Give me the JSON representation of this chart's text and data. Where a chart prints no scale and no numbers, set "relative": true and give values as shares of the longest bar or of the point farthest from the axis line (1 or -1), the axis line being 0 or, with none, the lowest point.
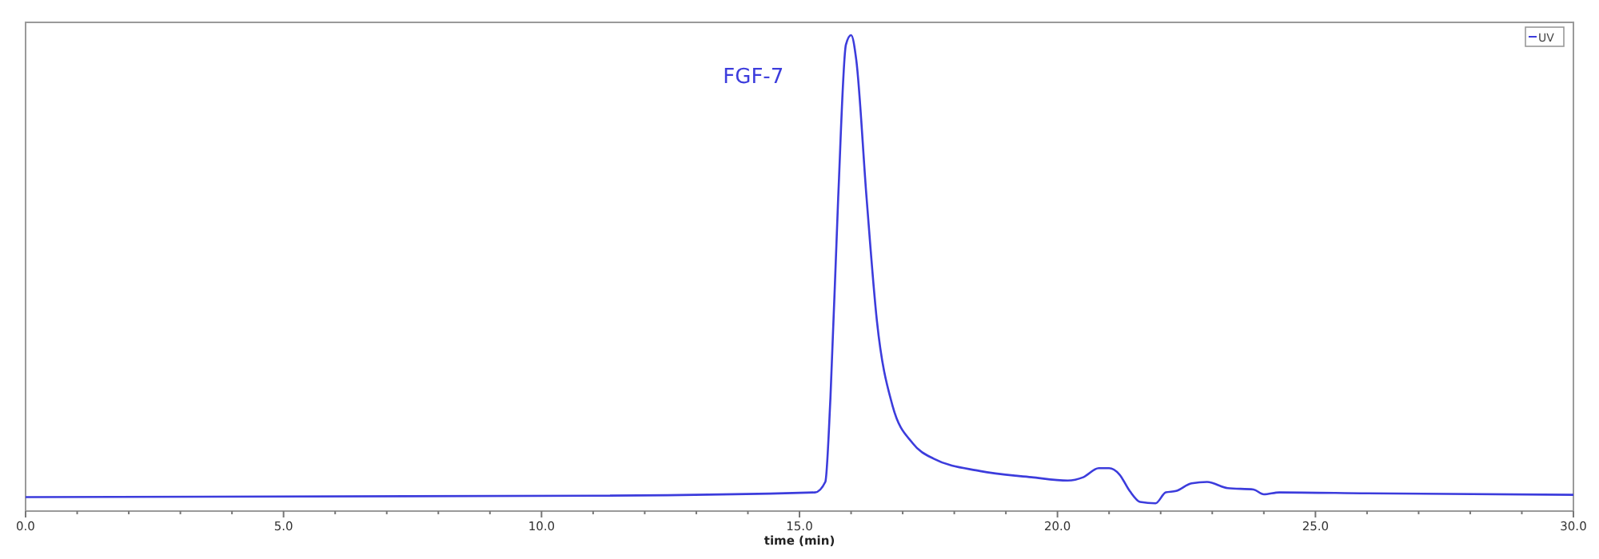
{
  "chart_data": {
    "type": "line",
    "relative": true,
    "xlabel": "time (min)",
    "xlim": [
      0,
      30
    ],
    "xticks": [
      {
        "value": 0,
        "label": "0.0"
      },
      {
        "value": 1,
        "label": null
      },
      {
        "value": 2,
        "label": null
      },
      {
        "value": 3,
        "label": null
      },
      {
        "value": 4,
        "label": null
      },
      {
        "value": 5,
        "label": "5.0"
      },
      {
        "value": 6,
        "label": null
      },
      {
        "value": 7,
        "label": null
      },
      {
        "value": 8,
        "label": null
      },
      {
        "value": 9,
        "label": null
      },
      {
        "value": 10,
        "label": "10.0"
      },
      {
        "value": 11,
        "label": null
      },
      {
        "value": 12,
        "label": null
      },
      {
        "value": 13,
        "label": null
      },
      {
        "value": 14,
        "label": null
      },
      {
        "value": 15,
        "label": "15.0"
      },
      {
        "value": 16,
        "label": null
      },
      {
        "value": 17,
        "label": null
      },
      {
        "value": 18,
        "label": null
      },
      {
        "value": 19,
        "label": null
      },
      {
        "value": 20,
        "label": "20.0"
      },
      {
        "value": 21,
        "label": null
      },
      {
        "value": 22,
        "label": null
      },
      {
        "value": 23,
        "label": null
      },
      {
        "value": 24,
        "label": null
      },
      {
        "value": 25,
        "label": "25.0"
      },
      {
        "value": 26,
        "label": null
      },
      {
        "value": 27,
        "label": null
      },
      {
        "value": 28,
        "label": null
      },
      {
        "value": 29,
        "label": null
      },
      {
        "value": 30,
        "label": "30.0"
      }
    ],
    "legend": "top right",
    "grid": false,
    "line_style": "solid",
    "marker": "none",
    "annotations": [
      "FGF-7"
    ],
    "series": [
      {
        "name": "UV",
        "color": "#3c3cdc",
        "x": [
          0,
          11,
          15.3,
          15.5,
          15.6,
          15.75,
          15.9,
          16,
          16.1,
          16.3,
          16.5,
          16.8,
          17.2,
          17.6,
          18.5,
          19.5,
          20.2,
          20.5,
          20.8,
          21,
          21.2,
          21.4,
          21.6,
          21.9,
          22.1,
          22.3,
          22.6,
          22.9,
          23.3,
          23.8,
          24,
          24.3,
          26,
          30
        ],
        "values": [
          0.026,
          0.029,
          0.036,
          0.058,
          0.236,
          0.657,
          0.98,
          1,
          0.948,
          0.657,
          0.398,
          0.22,
          0.139,
          0.107,
          0.081,
          0.068,
          0.061,
          0.068,
          0.087,
          0.087,
          0.074,
          0.039,
          0.016,
          0.013,
          0.036,
          0.039,
          0.055,
          0.058,
          0.045,
          0.042,
          0.032,
          0.036,
          0.034,
          0.031
        ]
      }
    ]
  }
}
